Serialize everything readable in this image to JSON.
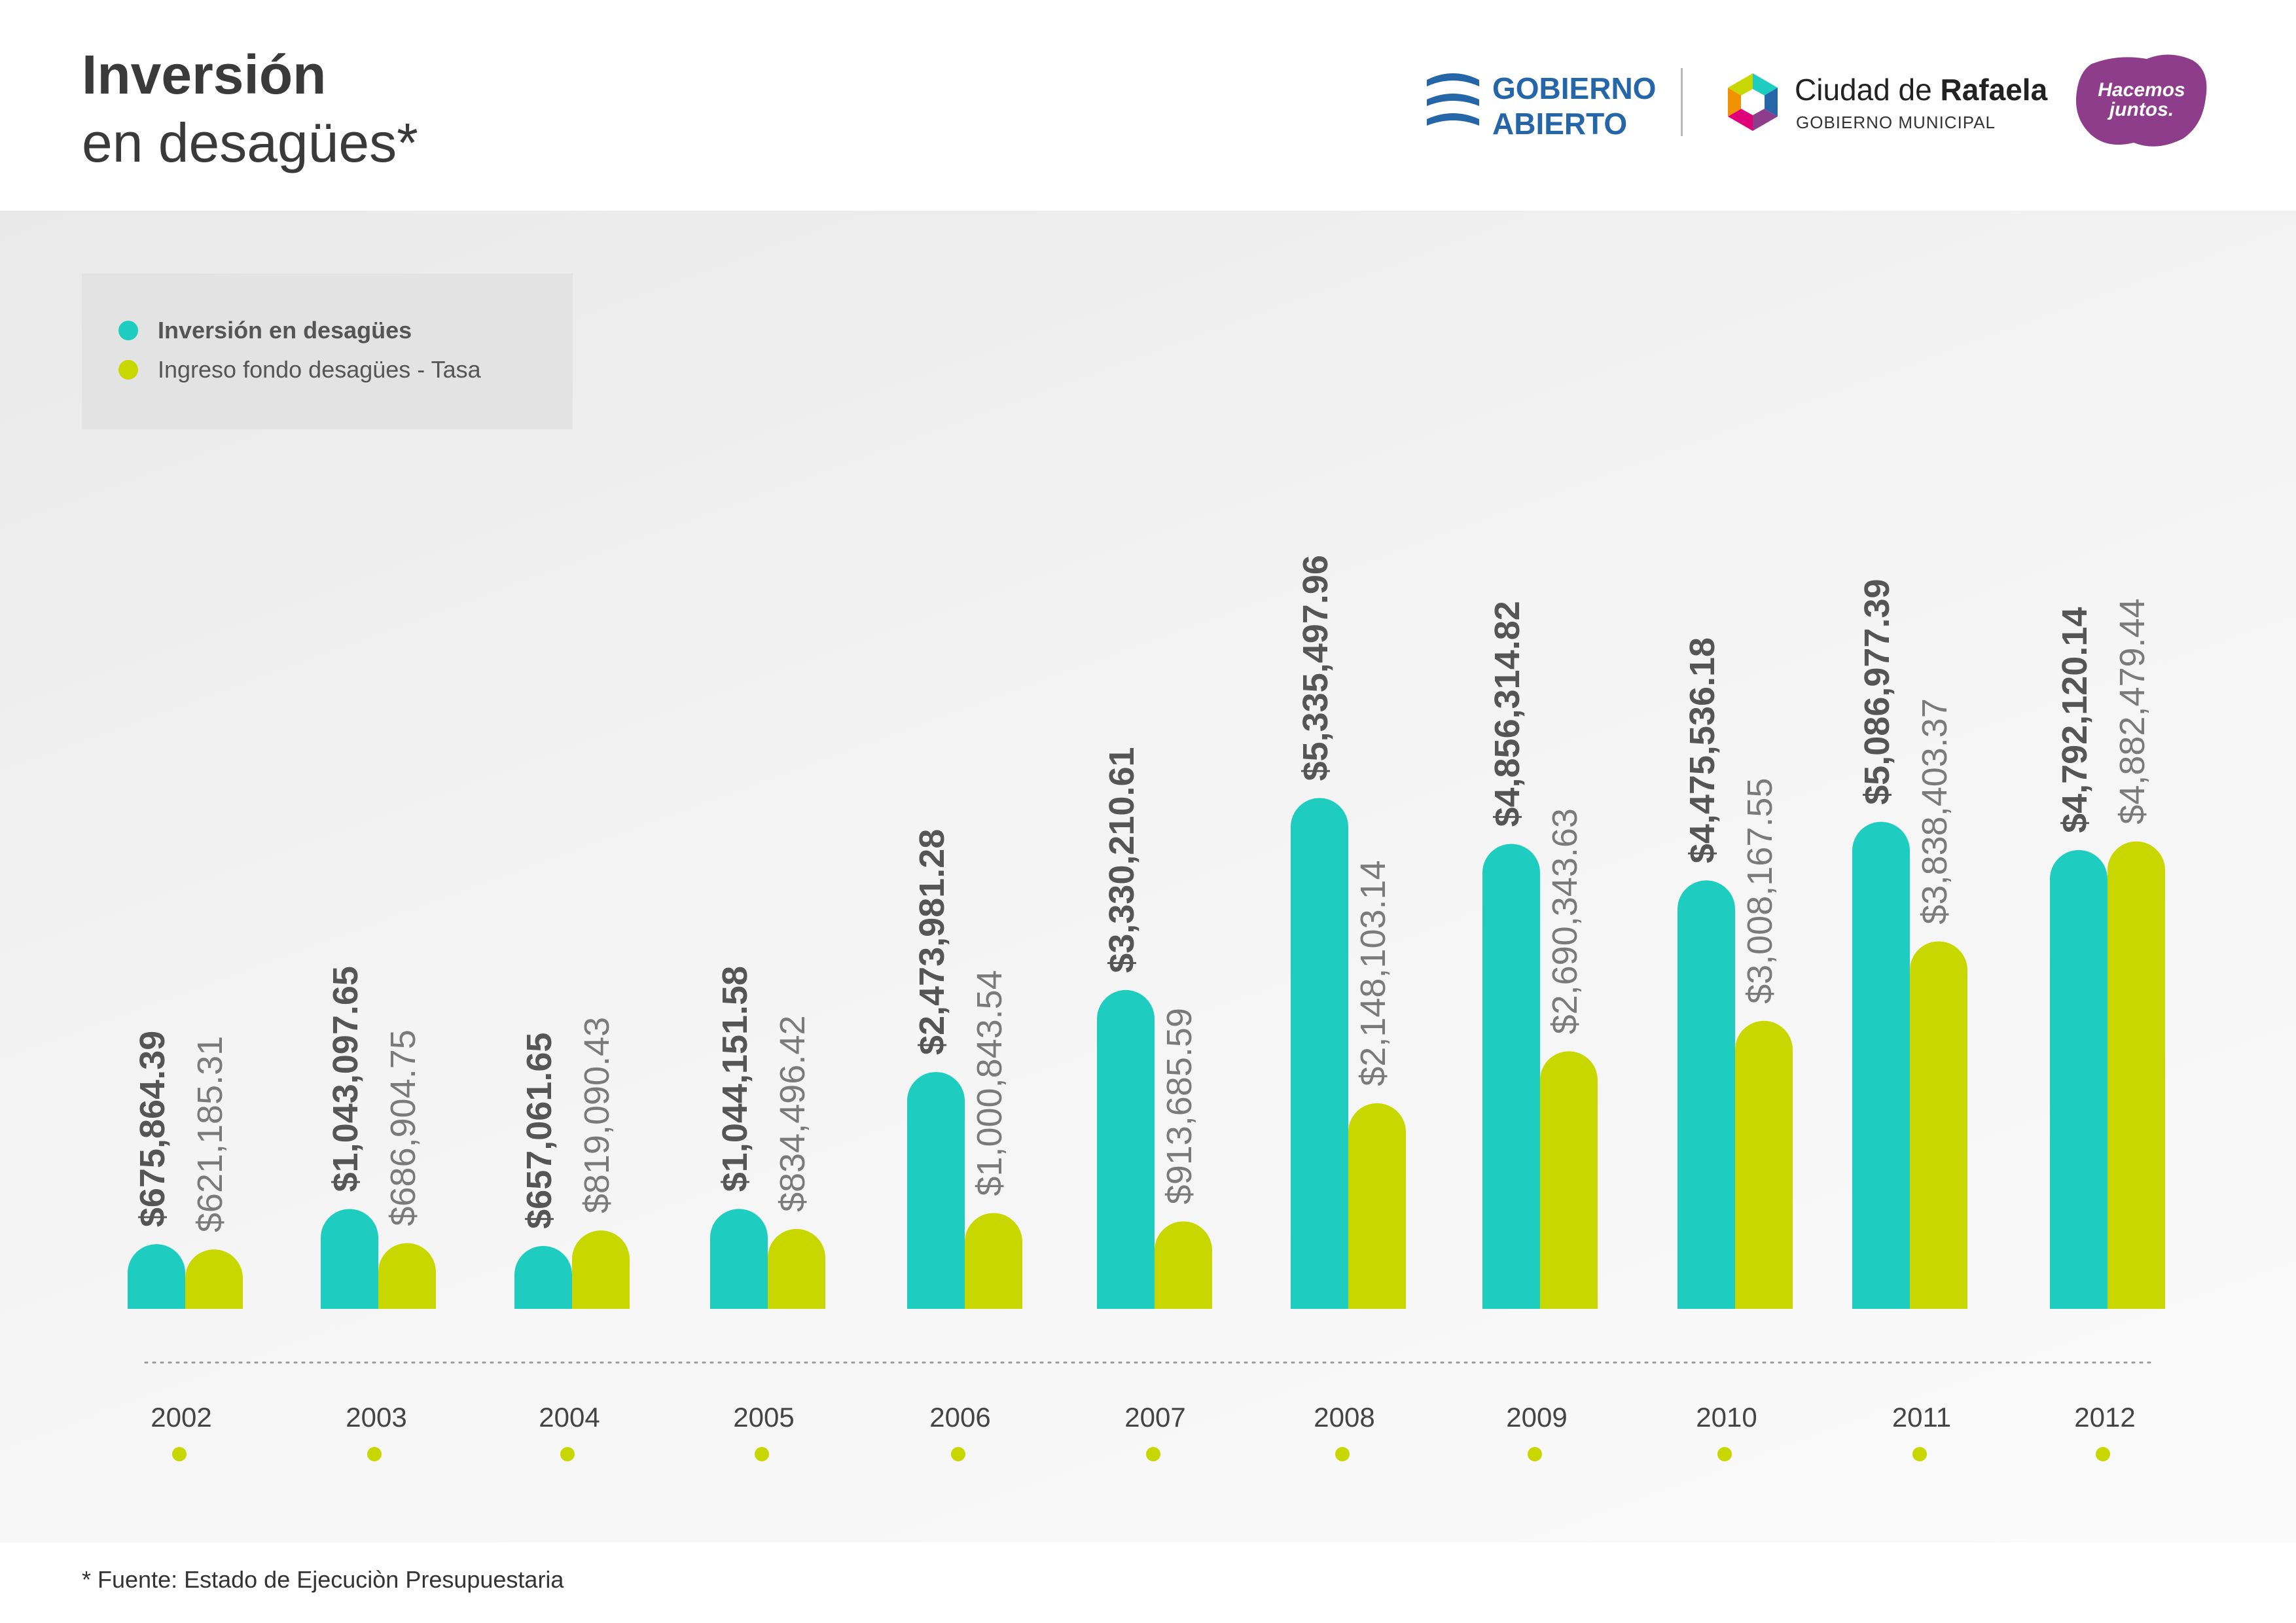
{
  "header": {
    "title_line1": "Inversión",
    "title_line2": "en desagües*"
  },
  "logos": {
    "gobierno_abierto": {
      "line1": "GOBIERNO",
      "line2": "ABIERTO",
      "color": "#2566a8"
    },
    "ciudad": {
      "name_regular": "Ciudad de ",
      "name_bold": "Rafaela",
      "subtitle": "GOBIERNO MUNICIPAL"
    },
    "hacemos": {
      "line1": "Hacemos",
      "line2": "juntos.",
      "color": "#8e3d8b"
    }
  },
  "legend": {
    "position": "top-left",
    "items": [
      {
        "label": "Inversión en desagües",
        "color": "#1ecdbf"
      },
      {
        "label": "Ingreso fondo desagües - Tasa",
        "color": "#c9d700"
      }
    ]
  },
  "chart_data": {
    "type": "bar",
    "categories": [
      "2002",
      "2003",
      "2004",
      "2005",
      "2006",
      "2007",
      "2008",
      "2009",
      "2010",
      "2011",
      "2012"
    ],
    "series": [
      {
        "name": "Inversión en desagües",
        "color": "#1ecdbf",
        "values": [
          675864.39,
          1043097.65,
          657061.65,
          1044151.58,
          2473981.28,
          3330210.61,
          5335497.96,
          4856314.82,
          4475536.18,
          5086977.39,
          4792120.14
        ],
        "labels": [
          "$675,864.39",
          "$1,043,097.65",
          "$657,061.65",
          "$1,044,151.58",
          "$2,473,981.28",
          "$3,330,210.61",
          "$5,335,497.96",
          "$4,856,314.82",
          "$4,475,536.18",
          "$5,086,977.39",
          "$4,792,120.14"
        ]
      },
      {
        "name": "Ingreso fondo desagües - Tasa",
        "color": "#c9d700",
        "values": [
          621185.31,
          686904.75,
          819090.43,
          834496.42,
          1000843.54,
          913685.59,
          2148103.14,
          2690343.63,
          3008167.55,
          3838403.37,
          4882479.44
        ],
        "labels": [
          "$621,185.31",
          "$686,904.75",
          "$819,090.43",
          "$834,496.42",
          "$1,000,843.54",
          "$913,685.59",
          "$2,148,103.14",
          "$2,690,343.63",
          "$3,008,167.55",
          "$3,838,403.37",
          "$4,882,479.44"
        ]
      }
    ],
    "grid": false,
    "ylim": [
      0,
      5400000
    ]
  },
  "footnote": "* Fuente: Estado de Ejecuciòn Presupuestaria"
}
